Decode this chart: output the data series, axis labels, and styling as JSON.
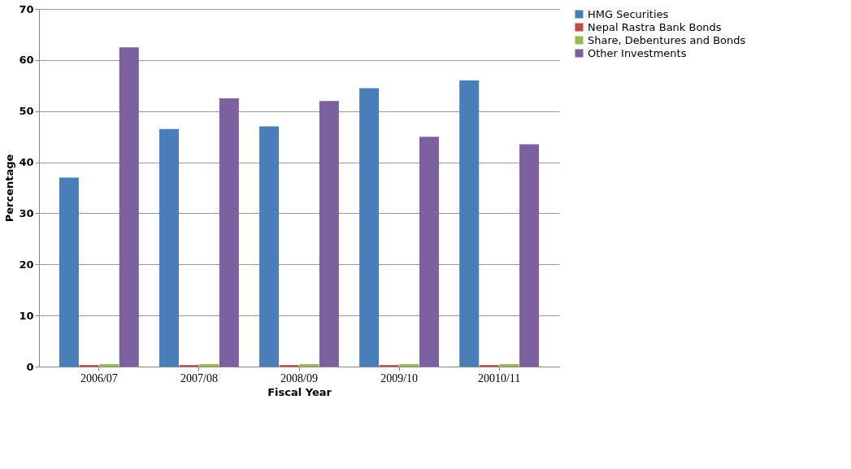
{
  "chart_data": {
    "type": "bar",
    "xlabel": "Fiscal Year",
    "ylabel": "Percentage",
    "categories": [
      "2006/07",
      "2007/08",
      "2008/09",
      "2009/10",
      "20010/11"
    ],
    "series": [
      {
        "name": "HMG Securities",
        "color": "#4a7ebb",
        "values": [
          37,
          46.5,
          47,
          54.5,
          56
        ]
      },
      {
        "name": "Nepal Rastra Bank Bonds",
        "color": "#be4b48",
        "values": [
          0.3,
          0.3,
          0.3,
          0.3,
          0.3
        ]
      },
      {
        "name": "Share, Debentures and Bonds",
        "color": "#98b954",
        "values": [
          0.5,
          0.5,
          0.5,
          0.5,
          0.5
        ]
      },
      {
        "name": "Other Investments",
        "color": "#7d60a0",
        "values": [
          62.5,
          52.5,
          52,
          45,
          43.5
        ]
      }
    ],
    "ylim": [
      0,
      70
    ],
    "yticks": [
      0,
      10,
      20,
      30,
      40,
      50,
      60,
      70
    ],
    "grid": "y",
    "legend": "right"
  }
}
